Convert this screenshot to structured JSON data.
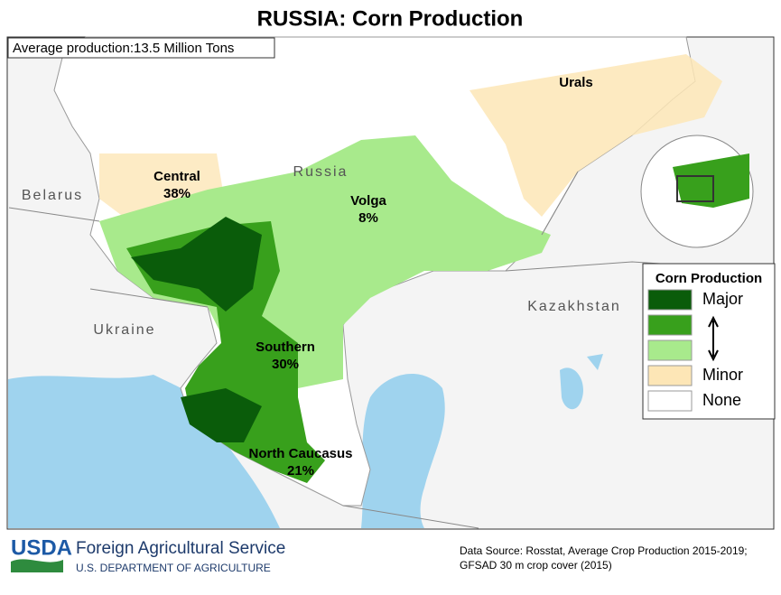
{
  "title": "RUSSIA:  Corn Production",
  "subtitle": "Average production:13.5 Million Tons",
  "countries": [
    "Belarus",
    "Russia",
    "Ukraine",
    "Kazakhstan"
  ],
  "regions": [
    {
      "name": "Central",
      "share": "38%"
    },
    {
      "name": "Volga",
      "share": "8%"
    },
    {
      "name": "Urals"
    },
    {
      "name": "Southern",
      "share": "30%"
    },
    {
      "name": "North Caucasus",
      "share": "21%"
    }
  ],
  "legend": {
    "title": "Corn Production",
    "items": [
      {
        "label": "Major",
        "color": "#0a5c0a"
      },
      {
        "color": "#38a01c"
      },
      {
        "color": "#a8ea8c"
      },
      {
        "label": "Minor",
        "color": "#fde6b6"
      },
      {
        "label": "None",
        "color": "#ffffff"
      }
    ]
  },
  "footer": {
    "agency_logo": "USDA",
    "agency": "Foreign Agricultural Service",
    "department": "U.S. DEPARTMENT OF AGRICULTURE",
    "source": [
      "Data Source: Rosstat, Average Crop Production 2015-2019;",
      "GFSAD 30 m crop cover (2015)"
    ]
  }
}
